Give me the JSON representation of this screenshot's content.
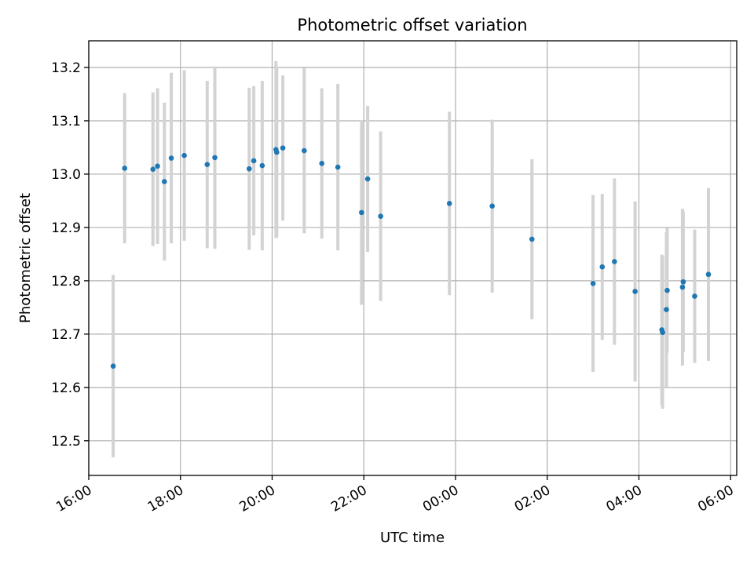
{
  "chart_data": {
    "type": "scatter",
    "title": "Photometric offset variation",
    "xlabel": "UTC time",
    "ylabel": "Photometric offset",
    "x_axis": "time",
    "xlim": [
      "16:00",
      "06:08"
    ],
    "ylim": [
      12.435,
      13.25
    ],
    "x_ticks": [
      "16:00",
      "18:00",
      "20:00",
      "22:00",
      "00:00",
      "02:00",
      "04:00",
      "06:00"
    ],
    "y_ticks": [
      "12.5",
      "12.6",
      "12.7",
      "12.8",
      "12.9",
      "13.0",
      "13.1",
      "13.2"
    ],
    "grid": true,
    "legend": "none",
    "colors": {
      "marker": "#1f77b4",
      "errorbar": "#d3d3d3",
      "grid": "#b0b0b0"
    },
    "points": [
      {
        "time": "16:32",
        "y": 12.64,
        "err": 0.171
      },
      {
        "time": "16:47",
        "y": 13.011,
        "err": 0.141
      },
      {
        "time": "17:24",
        "y": 13.009,
        "err": 0.144
      },
      {
        "time": "17:30",
        "y": 13.015,
        "err": 0.146
      },
      {
        "time": "17:39",
        "y": 12.986,
        "err": 0.148
      },
      {
        "time": "17:48",
        "y": 13.03,
        "err": 0.16
      },
      {
        "time": "18:05",
        "y": 13.035,
        "err": 0.16
      },
      {
        "time": "18:35",
        "y": 13.018,
        "err": 0.157
      },
      {
        "time": "18:45",
        "y": 13.031,
        "err": 0.171
      },
      {
        "time": "19:30",
        "y": 13.01,
        "err": 0.152
      },
      {
        "time": "19:36",
        "y": 13.025,
        "err": 0.14
      },
      {
        "time": "19:47",
        "y": 13.016,
        "err": 0.159
      },
      {
        "time": "20:05",
        "y": 13.046,
        "err": 0.166
      },
      {
        "time": "20:06",
        "y": 13.041,
        "err": 0.159
      },
      {
        "time": "20:14",
        "y": 13.049,
        "err": 0.136
      },
      {
        "time": "20:42",
        "y": 13.044,
        "err": 0.155
      },
      {
        "time": "21:05",
        "y": 13.02,
        "err": 0.141
      },
      {
        "time": "21:26",
        "y": 13.013,
        "err": 0.156
      },
      {
        "time": "21:57",
        "y": 12.928,
        "err": 0.173
      },
      {
        "time": "22:05",
        "y": 12.991,
        "err": 0.137
      },
      {
        "time": "22:22",
        "y": 12.921,
        "err": 0.159
      },
      {
        "time": "23:52",
        "y": 12.945,
        "err": 0.172
      },
      {
        "time": "00:48",
        "y": 12.94,
        "err": 0.162
      },
      {
        "time": "01:40",
        "y": 12.878,
        "err": 0.15
      },
      {
        "time": "03:00",
        "y": 12.795,
        "err": 0.166
      },
      {
        "time": "03:12",
        "y": 12.826,
        "err": 0.137
      },
      {
        "time": "03:28",
        "y": 12.836,
        "err": 0.156
      },
      {
        "time": "03:55",
        "y": 12.78,
        "err": 0.169
      },
      {
        "time": "04:30",
        "y": 12.708,
        "err": 0.141
      },
      {
        "time": "04:31",
        "y": 12.703,
        "err": 0.143
      },
      {
        "time": "04:36",
        "y": 12.746,
        "err": 0.145
      },
      {
        "time": "04:37",
        "y": 12.782,
        "err": 0.117
      },
      {
        "time": "04:57",
        "y": 12.788,
        "err": 0.147
      },
      {
        "time": "04:58",
        "y": 12.798,
        "err": 0.132
      },
      {
        "time": "05:13",
        "y": 12.771,
        "err": 0.125
      },
      {
        "time": "05:31",
        "y": 12.812,
        "err": 0.162
      }
    ]
  }
}
